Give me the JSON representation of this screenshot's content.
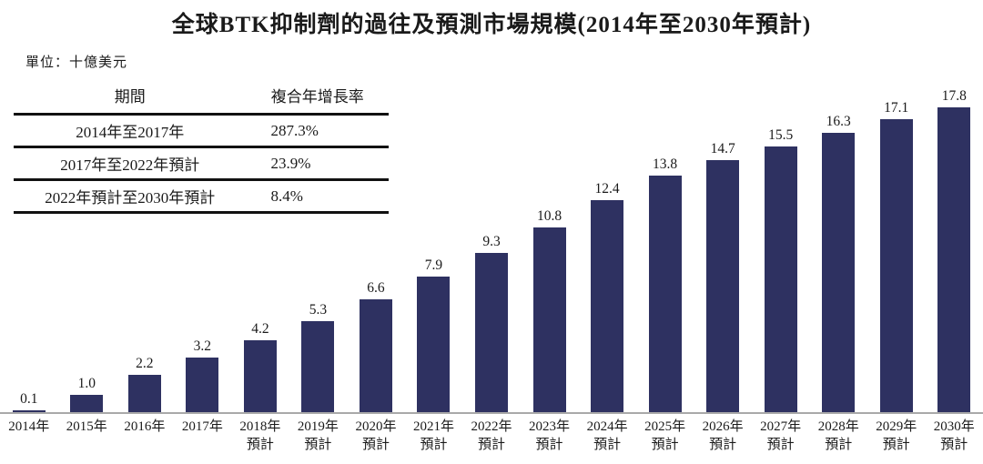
{
  "title": "全球BTK抑制劑的過往及預測市場規模(2014年至2030年預計)",
  "unit_label": "單位：十億美元",
  "cagr_table": {
    "headers": {
      "period": "期間",
      "cagr": "複合年增長率"
    },
    "rows": [
      {
        "period": "2014年至2017年",
        "cagr": "287.3%"
      },
      {
        "period": "2017年至2022年預計",
        "cagr": "23.9%"
      },
      {
        "period": "2022年預計至2030年預計",
        "cagr": "8.4%"
      }
    ]
  },
  "chart_data": {
    "type": "bar",
    "title": "全球BTK抑制劑的過往及預測市場規模(2014年至2030年預計)",
    "unit": "十億美元",
    "categories": [
      "2014年",
      "2015年",
      "2016年",
      "2017年",
      "2018年預計",
      "2019年預計",
      "2020年預計",
      "2021年預計",
      "2022年預計",
      "2023年預計",
      "2024年預計",
      "2025年預計",
      "2026年預計",
      "2027年預計",
      "2028年預計",
      "2029年預計",
      "2030年預計"
    ],
    "values": [
      0.1,
      1.0,
      2.2,
      3.2,
      4.2,
      5.3,
      6.6,
      7.9,
      9.3,
      10.8,
      12.4,
      13.8,
      14.7,
      15.5,
      16.3,
      17.1,
      17.8
    ],
    "labels": [
      "0.1",
      "1.0",
      "2.2",
      "3.2",
      "4.2",
      "5.3",
      "6.6",
      "7.9",
      "9.3",
      "10.8",
      "12.4",
      "13.8",
      "14.7",
      "15.5",
      "16.3",
      "17.1",
      "17.8"
    ],
    "ylim": [
      0,
      17.8
    ],
    "grid": false,
    "legend": "none",
    "bar_color": "#2e3161",
    "axis_color": "#a9a9a9",
    "forecast_suffix": "預計"
  }
}
